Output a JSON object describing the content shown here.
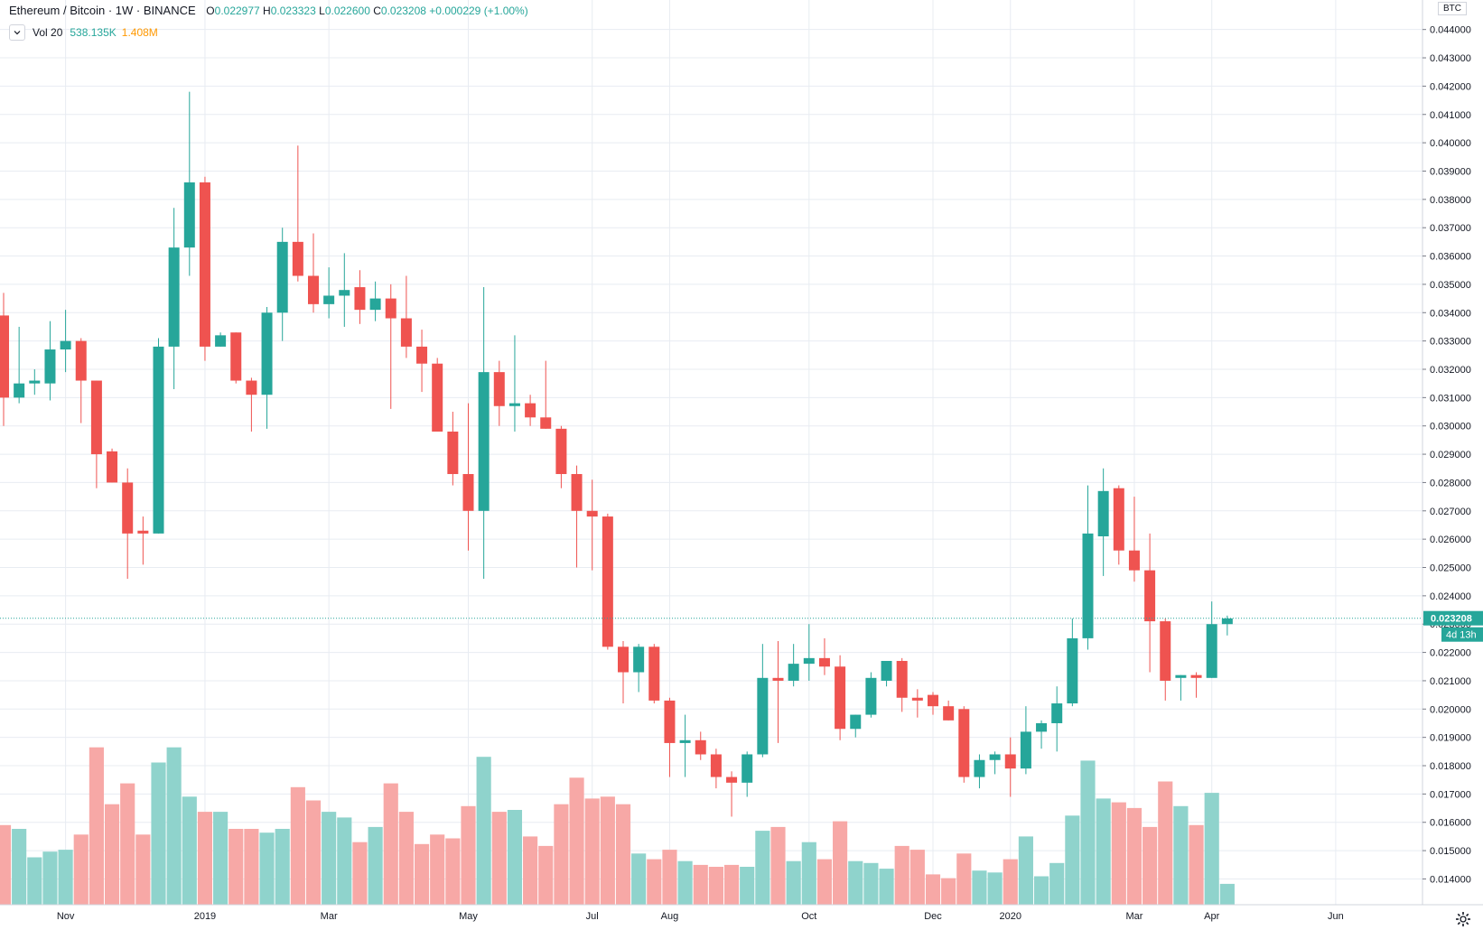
{
  "header": {
    "symbol": "Ethereum / Bitcoin",
    "interval": "1W",
    "exchange": "BINANCE",
    "open_label": "O",
    "open": "0.022977",
    "high_label": "H",
    "high": "0.023323",
    "low_label": "L",
    "low": "0.022600",
    "close_label": "C",
    "close": "0.023208",
    "change": "+0.000229 (+1.00%)"
  },
  "volume_legend": {
    "name": "Vol 20",
    "value1": "538.135K",
    "value2": "1.408M"
  },
  "axis": {
    "currency": "BTC",
    "last_price_label": "0.023208",
    "countdown": "4d 13h"
  },
  "colors": {
    "up": "#26a69a",
    "down": "#ef5350",
    "up_vol": "#8fd3cc",
    "down_vol": "#f7a8a6",
    "grid": "#e8ecf2"
  },
  "chart_data": {
    "type": "candlestick",
    "title": "Ethereum / Bitcoin · 1W · BINANCE",
    "y_unit": "BTC",
    "ylim": [
      0.0136,
      0.0445
    ],
    "y_ticks": [
      "0.044000",
      "0.043000",
      "0.042000",
      "0.041000",
      "0.040000",
      "0.039000",
      "0.038000",
      "0.037000",
      "0.036000",
      "0.035000",
      "0.034000",
      "0.033000",
      "0.032000",
      "0.031000",
      "0.030000",
      "0.029000",
      "0.028000",
      "0.027000",
      "0.026000",
      "0.025000",
      "0.024000",
      "0.023000",
      "0.022000",
      "0.021000",
      "0.020000",
      "0.019000",
      "0.018000",
      "0.017000",
      "0.016000",
      "0.015000",
      "0.014000"
    ],
    "last_price": 0.023208,
    "x_ticks": [
      {
        "label": "Nov",
        "index": 4
      },
      {
        "label": "2019",
        "index": 13
      },
      {
        "label": "Mar",
        "index": 21
      },
      {
        "label": "May",
        "index": 30
      },
      {
        "label": "Jul",
        "index": 38
      },
      {
        "label": "Aug",
        "index": 43
      },
      {
        "label": "Oct",
        "index": 52
      },
      {
        "label": "Dec",
        "index": 60
      },
      {
        "label": "2020",
        "index": 65
      },
      {
        "label": "Mar",
        "index": 73
      },
      {
        "label": "Apr",
        "index": 78
      },
      {
        "label": "Jun",
        "index": 86
      }
    ],
    "candles": [
      {
        "o": 0.0339,
        "h": 0.0347,
        "l": 0.03,
        "c": 0.031,
        "v": 0.42
      },
      {
        "o": 0.031,
        "h": 0.0335,
        "l": 0.0308,
        "c": 0.0315,
        "v": 0.4
      },
      {
        "o": 0.0315,
        "h": 0.032,
        "l": 0.0311,
        "c": 0.0316,
        "v": 0.25
      },
      {
        "o": 0.0315,
        "h": 0.0337,
        "l": 0.0309,
        "c": 0.0327,
        "v": 0.28
      },
      {
        "o": 0.0327,
        "h": 0.0341,
        "l": 0.0319,
        "c": 0.033,
        "v": 0.29
      },
      {
        "o": 0.033,
        "h": 0.0331,
        "l": 0.0301,
        "c": 0.0316,
        "v": 0.37
      },
      {
        "o": 0.0316,
        "h": 0.0316,
        "l": 0.0278,
        "c": 0.029,
        "v": 0.83
      },
      {
        "o": 0.0291,
        "h": 0.0292,
        "l": 0.028,
        "c": 0.028,
        "v": 0.53
      },
      {
        "o": 0.028,
        "h": 0.0285,
        "l": 0.0246,
        "c": 0.0262,
        "v": 0.64
      },
      {
        "o": 0.0263,
        "h": 0.0268,
        "l": 0.0251,
        "c": 0.0262,
        "v": 0.37
      },
      {
        "o": 0.0262,
        "h": 0.0331,
        "l": 0.0262,
        "c": 0.0328,
        "v": 0.75
      },
      {
        "o": 0.0328,
        "h": 0.0377,
        "l": 0.0313,
        "c": 0.0363,
        "v": 0.83
      },
      {
        "o": 0.0363,
        "h": 0.0418,
        "l": 0.0353,
        "c": 0.0386,
        "v": 0.57
      },
      {
        "o": 0.0386,
        "h": 0.0388,
        "l": 0.0323,
        "c": 0.0328,
        "v": 0.49
      },
      {
        "o": 0.0328,
        "h": 0.0333,
        "l": 0.0328,
        "c": 0.0332,
        "v": 0.49
      },
      {
        "o": 0.0333,
        "h": 0.0333,
        "l": 0.0315,
        "c": 0.0316,
        "v": 0.4
      },
      {
        "o": 0.0316,
        "h": 0.0317,
        "l": 0.0298,
        "c": 0.0311,
        "v": 0.4
      },
      {
        "o": 0.0311,
        "h": 0.0342,
        "l": 0.0299,
        "c": 0.034,
        "v": 0.38
      },
      {
        "o": 0.034,
        "h": 0.037,
        "l": 0.033,
        "c": 0.0365,
        "v": 0.4
      },
      {
        "o": 0.0365,
        "h": 0.0399,
        "l": 0.0351,
        "c": 0.0353,
        "v": 0.62
      },
      {
        "o": 0.0353,
        "h": 0.0368,
        "l": 0.034,
        "c": 0.0343,
        "v": 0.55
      },
      {
        "o": 0.0343,
        "h": 0.0356,
        "l": 0.0338,
        "c": 0.0346,
        "v": 0.49
      },
      {
        "o": 0.0346,
        "h": 0.0361,
        "l": 0.0335,
        "c": 0.0348,
        "v": 0.46
      },
      {
        "o": 0.0349,
        "h": 0.0355,
        "l": 0.0336,
        "c": 0.0341,
        "v": 0.33
      },
      {
        "o": 0.0341,
        "h": 0.0351,
        "l": 0.0337,
        "c": 0.0345,
        "v": 0.41
      },
      {
        "o": 0.0345,
        "h": 0.035,
        "l": 0.0306,
        "c": 0.0338,
        "v": 0.64
      },
      {
        "o": 0.0338,
        "h": 0.0353,
        "l": 0.0324,
        "c": 0.0328,
        "v": 0.49
      },
      {
        "o": 0.0328,
        "h": 0.0334,
        "l": 0.0312,
        "c": 0.0322,
        "v": 0.32
      },
      {
        "o": 0.0322,
        "h": 0.0324,
        "l": 0.0298,
        "c": 0.0298,
        "v": 0.37
      },
      {
        "o": 0.0298,
        "h": 0.0305,
        "l": 0.0279,
        "c": 0.0283,
        "v": 0.35
      },
      {
        "o": 0.0283,
        "h": 0.0308,
        "l": 0.0256,
        "c": 0.027,
        "v": 0.52
      },
      {
        "o": 0.027,
        "h": 0.0349,
        "l": 0.0246,
        "c": 0.0319,
        "v": 0.78
      },
      {
        "o": 0.0319,
        "h": 0.0323,
        "l": 0.03,
        "c": 0.0307,
        "v": 0.49
      },
      {
        "o": 0.0307,
        "h": 0.0332,
        "l": 0.0298,
        "c": 0.0308,
        "v": 0.5
      },
      {
        "o": 0.0308,
        "h": 0.0311,
        "l": 0.03,
        "c": 0.0303,
        "v": 0.36
      },
      {
        "o": 0.0303,
        "h": 0.0323,
        "l": 0.0299,
        "c": 0.0299,
        "v": 0.31
      },
      {
        "o": 0.0299,
        "h": 0.03,
        "l": 0.0278,
        "c": 0.0283,
        "v": 0.53
      },
      {
        "o": 0.0283,
        "h": 0.0286,
        "l": 0.025,
        "c": 0.027,
        "v": 0.67
      },
      {
        "o": 0.027,
        "h": 0.0281,
        "l": 0.0249,
        "c": 0.0268,
        "v": 0.56
      },
      {
        "o": 0.0268,
        "h": 0.0269,
        "l": 0.0221,
        "c": 0.0222,
        "v": 0.57
      },
      {
        "o": 0.0222,
        "h": 0.0224,
        "l": 0.0202,
        "c": 0.0213,
        "v": 0.53
      },
      {
        "o": 0.0213,
        "h": 0.0223,
        "l": 0.0206,
        "c": 0.0222,
        "v": 0.27
      },
      {
        "o": 0.0222,
        "h": 0.0223,
        "l": 0.0202,
        "c": 0.0203,
        "v": 0.24
      },
      {
        "o": 0.0203,
        "h": 0.0204,
        "l": 0.0176,
        "c": 0.0188,
        "v": 0.29
      },
      {
        "o": 0.0188,
        "h": 0.0198,
        "l": 0.0176,
        "c": 0.0189,
        "v": 0.23
      },
      {
        "o": 0.0189,
        "h": 0.0192,
        "l": 0.0182,
        "c": 0.0184,
        "v": 0.21
      },
      {
        "o": 0.0184,
        "h": 0.0186,
        "l": 0.0172,
        "c": 0.0176,
        "v": 0.2
      },
      {
        "o": 0.0176,
        "h": 0.0178,
        "l": 0.0162,
        "c": 0.0174,
        "v": 0.21
      },
      {
        "o": 0.0174,
        "h": 0.0185,
        "l": 0.0169,
        "c": 0.0184,
        "v": 0.2
      },
      {
        "o": 0.0184,
        "h": 0.0223,
        "l": 0.0183,
        "c": 0.0211,
        "v": 0.39
      },
      {
        "o": 0.0211,
        "h": 0.0224,
        "l": 0.0188,
        "c": 0.021,
        "v": 0.41
      },
      {
        "o": 0.021,
        "h": 0.0223,
        "l": 0.0208,
        "c": 0.0216,
        "v": 0.23
      },
      {
        "o": 0.0216,
        "h": 0.023,
        "l": 0.021,
        "c": 0.0218,
        "v": 0.33
      },
      {
        "o": 0.0218,
        "h": 0.0225,
        "l": 0.0212,
        "c": 0.0215,
        "v": 0.24
      },
      {
        "o": 0.0215,
        "h": 0.0219,
        "l": 0.0189,
        "c": 0.0193,
        "v": 0.44
      },
      {
        "o": 0.0193,
        "h": 0.0198,
        "l": 0.019,
        "c": 0.0198,
        "v": 0.23
      },
      {
        "o": 0.0198,
        "h": 0.0213,
        "l": 0.0197,
        "c": 0.0211,
        "v": 0.22
      },
      {
        "o": 0.021,
        "h": 0.0217,
        "l": 0.0208,
        "c": 0.0217,
        "v": 0.19
      },
      {
        "o": 0.0217,
        "h": 0.0218,
        "l": 0.0199,
        "c": 0.0204,
        "v": 0.31
      },
      {
        "o": 0.0204,
        "h": 0.0207,
        "l": 0.0197,
        "c": 0.0203,
        "v": 0.29
      },
      {
        "o": 0.0205,
        "h": 0.0206,
        "l": 0.0198,
        "c": 0.0201,
        "v": 0.16
      },
      {
        "o": 0.0201,
        "h": 0.0203,
        "l": 0.0196,
        "c": 0.0196,
        "v": 0.14
      },
      {
        "o": 0.02,
        "h": 0.0201,
        "l": 0.0174,
        "c": 0.0176,
        "v": 0.27
      },
      {
        "o": 0.0176,
        "h": 0.0184,
        "l": 0.0172,
        "c": 0.0182,
        "v": 0.18
      },
      {
        "o": 0.0182,
        "h": 0.0185,
        "l": 0.0177,
        "c": 0.0184,
        "v": 0.17
      },
      {
        "o": 0.0184,
        "h": 0.019,
        "l": 0.0169,
        "c": 0.0179,
        "v": 0.24
      },
      {
        "o": 0.0179,
        "h": 0.0201,
        "l": 0.0177,
        "c": 0.0192,
        "v": 0.36
      },
      {
        "o": 0.0192,
        "h": 0.0196,
        "l": 0.0186,
        "c": 0.0195,
        "v": 0.15
      },
      {
        "o": 0.0195,
        "h": 0.0208,
        "l": 0.0185,
        "c": 0.0202,
        "v": 0.22
      },
      {
        "o": 0.0202,
        "h": 0.0232,
        "l": 0.0201,
        "c": 0.0225,
        "v": 0.47
      },
      {
        "o": 0.0225,
        "h": 0.0279,
        "l": 0.0221,
        "c": 0.0262,
        "v": 0.76
      },
      {
        "o": 0.0261,
        "h": 0.0285,
        "l": 0.0247,
        "c": 0.0277,
        "v": 0.56
      },
      {
        "o": 0.0278,
        "h": 0.0279,
        "l": 0.0251,
        "c": 0.0256,
        "v": 0.54
      },
      {
        "o": 0.0256,
        "h": 0.0275,
        "l": 0.0245,
        "c": 0.0249,
        "v": 0.51
      },
      {
        "o": 0.0249,
        "h": 0.0262,
        "l": 0.0213,
        "c": 0.0231,
        "v": 0.41
      },
      {
        "o": 0.0231,
        "h": 0.0232,
        "l": 0.0203,
        "c": 0.021,
        "v": 0.65
      },
      {
        "o": 0.0211,
        "h": 0.0212,
        "l": 0.0203,
        "c": 0.0212,
        "v": 0.52
      },
      {
        "o": 0.0212,
        "h": 0.0213,
        "l": 0.0204,
        "c": 0.0211,
        "v": 0.42
      },
      {
        "o": 0.0211,
        "h": 0.0238,
        "l": 0.0211,
        "c": 0.023,
        "v": 0.59
      },
      {
        "o": 0.023,
        "h": 0.0233,
        "l": 0.0226,
        "c": 0.0232,
        "v": 0.11
      }
    ],
    "volume_legend_values": [
      "538.135K",
      "1.408M"
    ]
  }
}
